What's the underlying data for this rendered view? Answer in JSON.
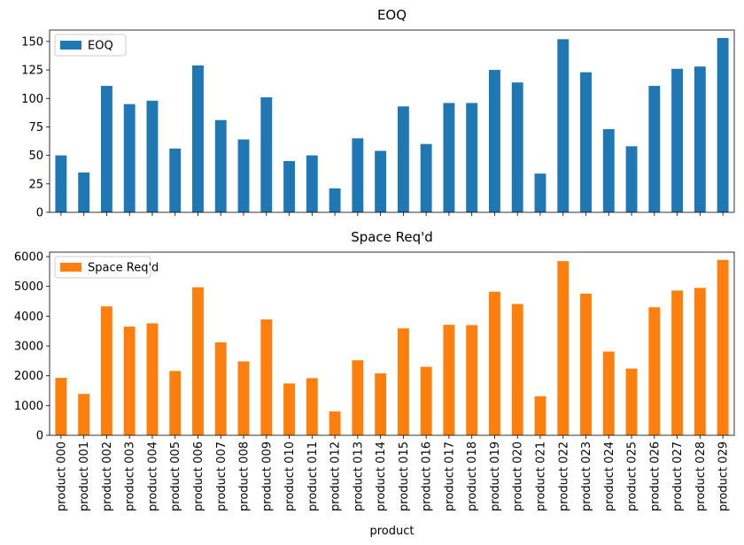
{
  "chart_data": [
    {
      "type": "bar",
      "title": "EOQ",
      "xlabel": "",
      "ylabel": "",
      "ylim": [
        0,
        160
      ],
      "yticks": [
        0,
        25,
        50,
        75,
        100,
        125,
        150
      ],
      "grid": false,
      "legend_placement": "top-left",
      "show_x_tick_labels": false,
      "categories": [
        "product 000",
        "product 001",
        "product 002",
        "product 003",
        "product 004",
        "product 005",
        "product 006",
        "product 007",
        "product 008",
        "product 009",
        "product 010",
        "product 011",
        "product 012",
        "product 013",
        "product 014",
        "product 015",
        "product 016",
        "product 017",
        "product 018",
        "product 019",
        "product 020",
        "product 021",
        "product 022",
        "product 023",
        "product 024",
        "product 025",
        "product 026",
        "product 027",
        "product 028",
        "product 029"
      ],
      "series": [
        {
          "name": "EOQ",
          "color": "#1f77b4",
          "values": [
            50,
            35,
            111,
            95,
            98,
            56,
            129,
            81,
            64,
            101,
            45,
            50,
            21,
            65,
            54,
            93,
            60,
            96,
            96,
            125,
            114,
            34,
            152,
            123,
            73,
            58,
            111,
            126,
            128,
            153
          ]
        }
      ]
    },
    {
      "type": "bar",
      "title": "Space Req'd",
      "xlabel": "product",
      "ylabel": "",
      "ylim": [
        0,
        6150
      ],
      "yticks": [
        0,
        1000,
        2000,
        3000,
        4000,
        5000,
        6000
      ],
      "grid": false,
      "legend_placement": "top-left",
      "show_x_tick_labels": true,
      "categories": [
        "product 000",
        "product 001",
        "product 002",
        "product 003",
        "product 004",
        "product 005",
        "product 006",
        "product 007",
        "product 008",
        "product 009",
        "product 010",
        "product 011",
        "product 012",
        "product 013",
        "product 014",
        "product 015",
        "product 016",
        "product 017",
        "product 018",
        "product 019",
        "product 020",
        "product 021",
        "product 022",
        "product 023",
        "product 024",
        "product 025",
        "product 026",
        "product 027",
        "product 028",
        "product 029"
      ],
      "series": [
        {
          "name": "Space Req'd",
          "color": "#ff7f0e",
          "values": [
            1930,
            1390,
            4330,
            3650,
            3760,
            2160,
            4970,
            3120,
            2480,
            3890,
            1740,
            1920,
            800,
            2520,
            2080,
            3590,
            2300,
            3710,
            3700,
            4820,
            4410,
            1310,
            5850,
            4760,
            2810,
            2240,
            4300,
            4860,
            4950,
            5890
          ]
        }
      ]
    }
  ]
}
